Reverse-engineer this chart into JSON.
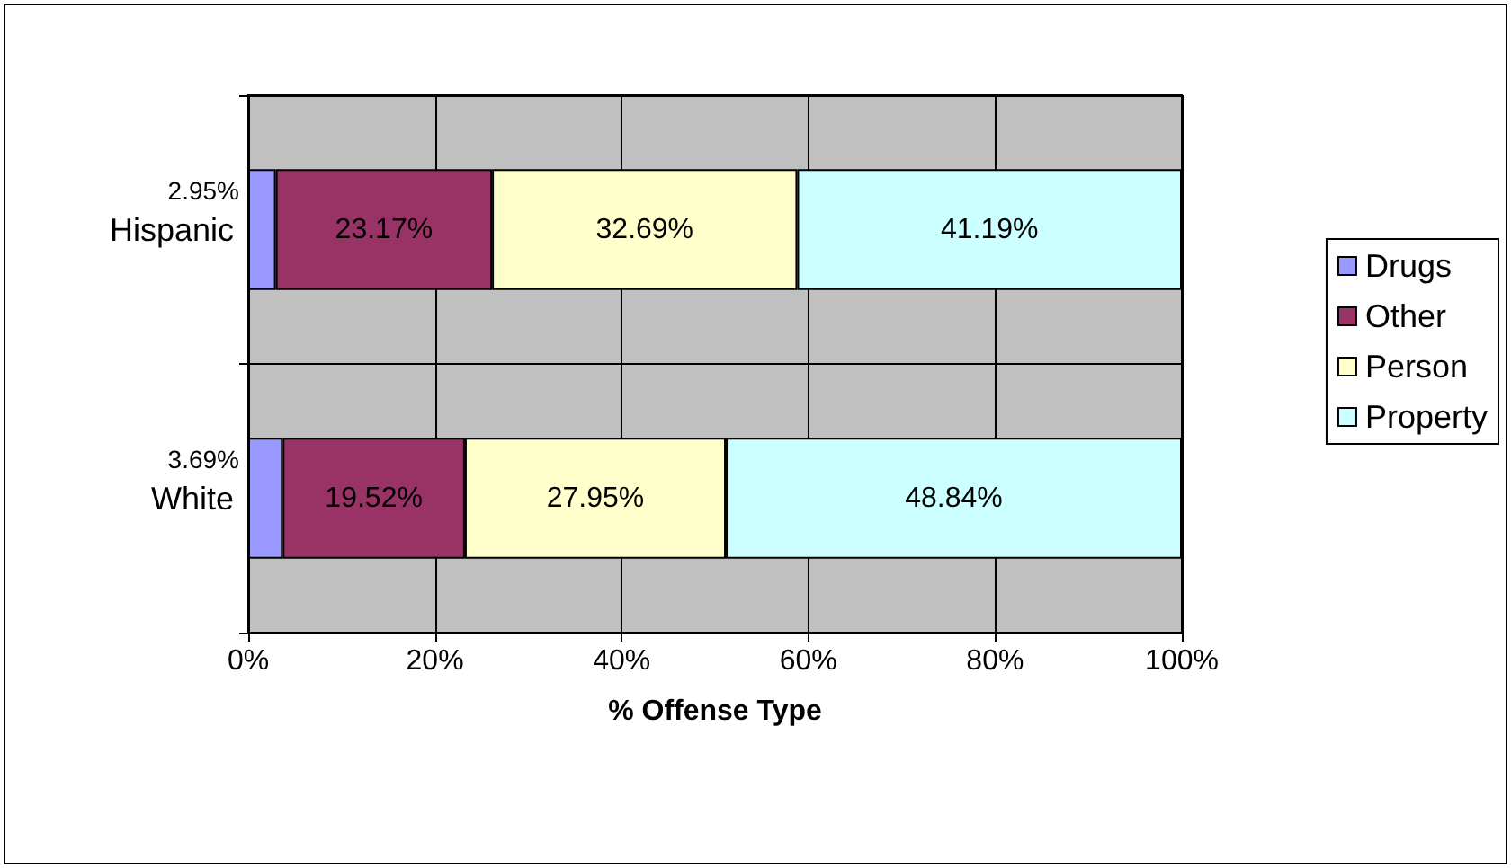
{
  "chart_data": {
    "type": "bar",
    "orientation": "horizontal",
    "stacked": true,
    "xlabel": "% Offense Type",
    "categories": [
      "Hispanic",
      "White"
    ],
    "series": [
      {
        "name": "Drugs",
        "color": "#9999ff",
        "values": [
          2.95,
          3.69
        ],
        "value_labels": [
          "2.95%",
          "3.69%"
        ]
      },
      {
        "name": "Other",
        "color": "#993366",
        "values": [
          23.17,
          19.52
        ],
        "value_labels": [
          "23.17%",
          "19.52%"
        ]
      },
      {
        "name": "Person",
        "color": "#ffffcc",
        "values": [
          32.69,
          27.95
        ],
        "value_labels": [
          "32.69%",
          "27.95%"
        ]
      },
      {
        "name": "Property",
        "color": "#ccffff",
        "values": [
          41.19,
          48.84
        ],
        "value_labels": [
          "41.19%",
          "48.84%"
        ]
      }
    ],
    "xlim": [
      0,
      100
    ],
    "xticks": [
      {
        "value": 0,
        "label": "0%"
      },
      {
        "value": 20,
        "label": "20%"
      },
      {
        "value": 40,
        "label": "40%"
      },
      {
        "value": 60,
        "label": "60%"
      },
      {
        "value": 80,
        "label": "80%"
      },
      {
        "value": 100,
        "label": "100%"
      }
    ],
    "grid": true,
    "legend": "right"
  }
}
